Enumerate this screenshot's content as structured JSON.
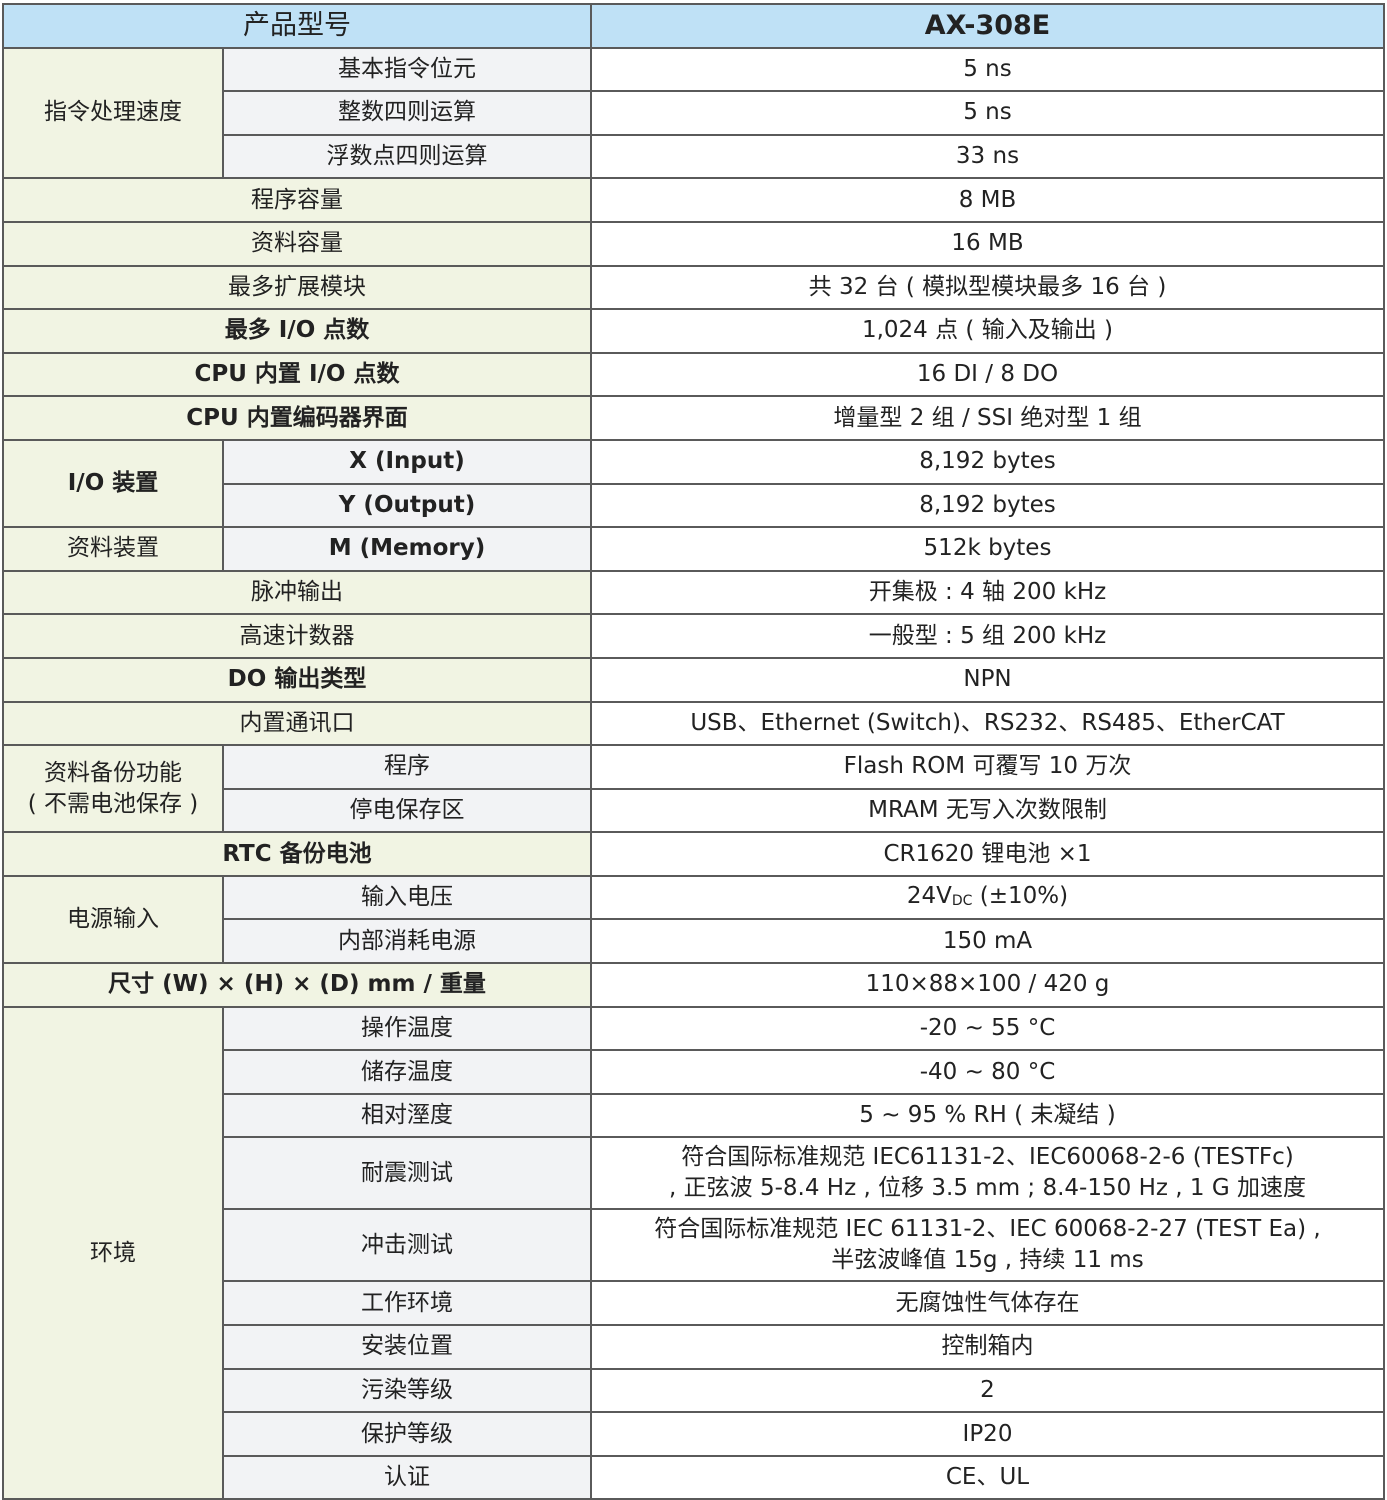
{
  "header": {
    "label": "产品型号",
    "model": "AX-308E"
  },
  "colors": {
    "header_bg": "#bfe1f6",
    "group_bg": "#f1f4e3",
    "sub_bg": "#f2f3f5",
    "border": "#5a5a5a"
  },
  "rows": [
    {
      "label": "指令处理速度",
      "subs": [
        {
          "label": "基本指令位元",
          "value": "5 ns"
        },
        {
          "label": "整数四则运算",
          "value": "5 ns"
        },
        {
          "label": "浮数点四则运算",
          "value": "33 ns"
        }
      ]
    },
    {
      "label": "程序容量",
      "value": "8 MB"
    },
    {
      "label": "资料容量",
      "value": "16 MB"
    },
    {
      "label": "最多扩展模块",
      "value": "共 32 台 ( 模拟型模块最多 16 台 )"
    },
    {
      "label": "最多 I/O 点数",
      "value": "1,024 点 ( 输入及输出 )"
    },
    {
      "label": "CPU 内置 I/O 点数",
      "value": "16 DI / 8 DO"
    },
    {
      "label": "CPU 内置编码器界面",
      "value": "增量型 2 组 / SSI 绝对型 1 组"
    },
    {
      "label": "I/O 装置",
      "subs": [
        {
          "label": "X (Input)",
          "value": "8,192 bytes",
          "bold": true
        },
        {
          "label": "Y (Output)",
          "value": "8,192 bytes",
          "bold": true
        }
      ]
    },
    {
      "label": "资料装置",
      "subs": [
        {
          "label": "M (Memory)",
          "value": "512k bytes",
          "bold": true
        }
      ]
    },
    {
      "label": "脉冲输出",
      "value": "开集极 : 4 轴 200 kHz"
    },
    {
      "label": "高速计数器",
      "value": "一般型 : 5 组 200 kHz"
    },
    {
      "label": "DO 输出类型",
      "value": "NPN"
    },
    {
      "label": "内置通讯口",
      "value": "USB、Ethernet (Switch)、RS232、RS485、EtherCAT"
    },
    {
      "label": "资料备份功能",
      "label2": "( 不需电池保存 )",
      "subs": [
        {
          "label": "程序",
          "value": "Flash ROM 可覆写 10 万次"
        },
        {
          "label": "停电保存区",
          "value": "MRAM 无写入次数限制"
        }
      ]
    },
    {
      "label": "RTC 备份电池",
      "value": "CR1620 锂电池 ×1"
    },
    {
      "label": "电源输入",
      "subs": [
        {
          "label": "输入电压",
          "value": "24V",
          "value_sub": "DC",
          "value_tail": " (±10%)"
        },
        {
          "label": "内部消耗电源",
          "value": "150 mA"
        }
      ]
    },
    {
      "label": "尺寸 (W) × (H) × (D) mm / 重量",
      "value": "110×88×100 / 420 g"
    },
    {
      "label": "环境",
      "subs": [
        {
          "label": "操作温度",
          "value": "-20 ~ 55 °C"
        },
        {
          "label": "储存温度",
          "value": "-40 ~ 80 °C"
        },
        {
          "label": "相对溼度",
          "value": "5 ~ 95 % RH ( 未凝结 )"
        },
        {
          "label": "耐震测试",
          "value": "符合国际标准规范 IEC61131-2、IEC60068-2-6 (TESTFc)",
          "value2": ", 正弦波 5-8.4 Hz , 位移 3.5 mm ; 8.4-150 Hz , 1 G 加速度"
        },
        {
          "label": "冲击测试",
          "value": "符合国际标准规范 IEC 61131-2、IEC 60068-2-27 (TEST Ea) ,",
          "value2": "半弦波峰值 15g , 持续 11 ms"
        },
        {
          "label": "工作环境",
          "value": "无腐蚀性气体存在"
        },
        {
          "label": "安装位置",
          "value": "控制箱内"
        },
        {
          "label": "污染等级",
          "value": "2"
        },
        {
          "label": "保护等级",
          "value": "IP20"
        },
        {
          "label": "认证",
          "value": "CE、UL"
        }
      ]
    }
  ]
}
